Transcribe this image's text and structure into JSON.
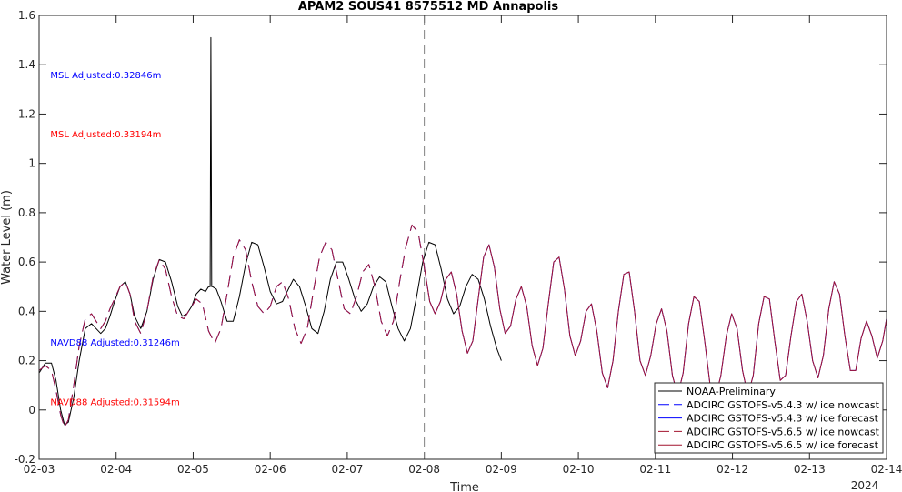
{
  "chart_data": {
    "type": "line",
    "title": "APAM2 SOUS41 8575512 MD Annapolis",
    "xlabel": "Time",
    "ylabel": "Water Level (m)",
    "xlim": [
      0,
      11
    ],
    "ylim": [
      -0.2,
      1.6
    ],
    "x_ticks": [
      {
        "x": 0,
        "label": "02-03"
      },
      {
        "x": 1,
        "label": "02-04"
      },
      {
        "x": 2,
        "label": "02-05"
      },
      {
        "x": 3,
        "label": "02-06"
      },
      {
        "x": 4,
        "label": "02-07"
      },
      {
        "x": 5,
        "label": "02-08"
      },
      {
        "x": 6,
        "label": "02-09"
      },
      {
        "x": 7,
        "label": "02-10"
      },
      {
        "x": 8,
        "label": "02-11"
      },
      {
        "x": 9,
        "label": "02-12"
      },
      {
        "x": 10,
        "label": "02-13"
      },
      {
        "x": 11,
        "label": "02-14"
      }
    ],
    "x_sub_label": "2024",
    "y_ticks": [
      -0.2,
      0,
      0.2,
      0.4,
      0.6,
      0.8,
      1,
      1.2,
      1.4,
      1.6
    ],
    "y_tick_labels": [
      "-0.2",
      "0",
      "0.2",
      "0.4",
      "0.6",
      "0.8",
      "1",
      "1.2",
      "1.4",
      "1.6"
    ],
    "forecast_divider_x": 5,
    "annotations": [
      {
        "text": "MSL Adjusted:0.32846m",
        "x": 0.3,
        "y": 1.36,
        "color": "#0000ff"
      },
      {
        "text": "MSL Adjusted:0.33194m",
        "x": 0.3,
        "y": 1.12,
        "color": "#ff0000"
      },
      {
        "text": "NAVD88 Adjusted:0.31246m",
        "x": 0.3,
        "y": 0.275,
        "color": "#0000ff"
      },
      {
        "text": "NAVD88 Adjusted:0.31594m",
        "x": 0.3,
        "y": 0.035,
        "color": "#ff0000"
      }
    ],
    "legend_position": "bottom-right",
    "series": [
      {
        "name": "NOAA-Preliminary",
        "color": "#000000",
        "dash": "solid",
        "x": [
          0,
          0.08,
          0.16,
          0.22,
          0.28,
          0.33,
          0.38,
          0.45,
          0.52,
          0.6,
          0.68,
          0.74,
          0.8,
          0.86,
          0.92,
          0.98,
          1.05,
          1.12,
          1.18,
          1.24,
          1.32,
          1.4,
          1.48,
          1.56,
          1.64,
          1.72,
          1.8,
          1.86,
          1.92,
          1.98,
          2.04,
          2.1,
          2.16,
          2.2,
          2.22,
          2.23,
          2.24,
          2.25,
          2.3,
          2.36,
          2.44,
          2.52,
          2.6,
          2.68,
          2.76,
          2.84,
          2.92,
          3.0,
          3.08,
          3.16,
          3.22,
          3.3,
          3.38,
          3.46,
          3.54,
          3.62,
          3.7,
          3.78,
          3.86,
          3.94,
          4.02,
          4.1,
          4.18,
          4.26,
          4.34,
          4.42,
          4.5,
          4.58,
          4.66,
          4.74,
          4.82,
          4.9,
          4.98,
          5.06,
          5.14,
          5.22,
          5.3,
          5.38,
          5.46,
          5.54,
          5.62,
          5.7,
          5.78,
          5.86,
          5.94,
          6.0
        ],
        "y": [
          0.15,
          0.19,
          0.19,
          0.12,
          0.0,
          -0.06,
          -0.05,
          0.05,
          0.2,
          0.33,
          0.35,
          0.33,
          0.31,
          0.33,
          0.38,
          0.44,
          0.5,
          0.52,
          0.47,
          0.38,
          0.33,
          0.4,
          0.53,
          0.61,
          0.6,
          0.52,
          0.42,
          0.38,
          0.39,
          0.42,
          0.47,
          0.49,
          0.48,
          0.5,
          0.5,
          1.51,
          0.5,
          0.5,
          0.49,
          0.44,
          0.36,
          0.36,
          0.46,
          0.59,
          0.68,
          0.67,
          0.58,
          0.48,
          0.43,
          0.44,
          0.48,
          0.53,
          0.5,
          0.42,
          0.33,
          0.31,
          0.4,
          0.53,
          0.6,
          0.6,
          0.53,
          0.45,
          0.4,
          0.43,
          0.5,
          0.54,
          0.52,
          0.42,
          0.33,
          0.28,
          0.33,
          0.46,
          0.6,
          0.68,
          0.67,
          0.57,
          0.45,
          0.39,
          0.42,
          0.5,
          0.55,
          0.53,
          0.45,
          0.34,
          0.25,
          0.2
        ]
      },
      {
        "name": "ADCIRC GSTOFS-v5.4.3 w/ ice nowcast",
        "color": "#0000ff",
        "dash": "dashed",
        "x": [
          0,
          0.08,
          0.16,
          0.22,
          0.28,
          0.33,
          0.38,
          0.45,
          0.52,
          0.6,
          0.68,
          0.74,
          0.8,
          0.86,
          0.92,
          0.98,
          1.05,
          1.12,
          1.18,
          1.24,
          1.32,
          1.4,
          1.48,
          1.56,
          1.64,
          1.72,
          1.8,
          1.88,
          1.96,
          2.04,
          2.12,
          2.2,
          2.28,
          2.36,
          2.44,
          2.52,
          2.6,
          2.68,
          2.76,
          2.84,
          2.92,
          3.0,
          3.08,
          3.16,
          3.24,
          3.32,
          3.4,
          3.48,
          3.56,
          3.64,
          3.72,
          3.8,
          3.88,
          3.96,
          4.04,
          4.12,
          4.2,
          4.28,
          4.36,
          4.44,
          4.52,
          4.6,
          4.68,
          4.76,
          4.84,
          4.92,
          5.0
        ],
        "y": [
          0.16,
          0.18,
          0.16,
          0.08,
          -0.02,
          -0.07,
          -0.04,
          0.1,
          0.26,
          0.37,
          0.39,
          0.36,
          0.33,
          0.36,
          0.41,
          0.45,
          0.5,
          0.52,
          0.47,
          0.36,
          0.31,
          0.4,
          0.54,
          0.61,
          0.57,
          0.46,
          0.38,
          0.37,
          0.41,
          0.45,
          0.43,
          0.32,
          0.27,
          0.33,
          0.47,
          0.62,
          0.69,
          0.65,
          0.52,
          0.42,
          0.39,
          0.42,
          0.5,
          0.52,
          0.45,
          0.33,
          0.27,
          0.33,
          0.48,
          0.62,
          0.68,
          0.65,
          0.53,
          0.41,
          0.39,
          0.46,
          0.56,
          0.59,
          0.5,
          0.36,
          0.3,
          0.36,
          0.52,
          0.66,
          0.75,
          0.72,
          0.58
        ]
      },
      {
        "name": "ADCIRC GSTOFS-v5.4.3 w/ ice forecast",
        "color": "#0000ff",
        "dash": "solid",
        "x": [
          5.0,
          5.07,
          5.14,
          5.21,
          5.28,
          5.35,
          5.42,
          5.49,
          5.56,
          5.63,
          5.7,
          5.77,
          5.84,
          5.91,
          5.98,
          6.05,
          6.12,
          6.19,
          6.26,
          6.33,
          6.4,
          6.47,
          6.54,
          6.61,
          6.68,
          6.75,
          6.82,
          6.89,
          6.96,
          7.03,
          7.1,
          7.17,
          7.24,
          7.31,
          7.38,
          7.45,
          7.52,
          7.59,
          7.66,
          7.73,
          7.8,
          7.87,
          7.94,
          8.01,
          8.08,
          8.15,
          8.22,
          8.29,
          8.36,
          8.43,
          8.5,
          8.57,
          8.64,
          8.71,
          8.78,
          8.85,
          8.92,
          8.99,
          9.06,
          9.13,
          9.2,
          9.27,
          9.34,
          9.41,
          9.48,
          9.55,
          9.62,
          9.69,
          9.76,
          9.83,
          9.9,
          9.97,
          10.04,
          10.11,
          10.18,
          10.25,
          10.32,
          10.39,
          10.46,
          10.53,
          10.6,
          10.67,
          10.74,
          10.81,
          10.88,
          10.95,
          11.0
        ],
        "y": [
          0.58,
          0.44,
          0.39,
          0.44,
          0.53,
          0.56,
          0.47,
          0.32,
          0.23,
          0.28,
          0.45,
          0.62,
          0.67,
          0.58,
          0.41,
          0.31,
          0.34,
          0.45,
          0.5,
          0.42,
          0.26,
          0.18,
          0.25,
          0.43,
          0.6,
          0.62,
          0.49,
          0.3,
          0.22,
          0.28,
          0.4,
          0.43,
          0.32,
          0.15,
          0.09,
          0.2,
          0.4,
          0.55,
          0.56,
          0.4,
          0.2,
          0.14,
          0.22,
          0.35,
          0.41,
          0.32,
          0.14,
          0.06,
          0.15,
          0.35,
          0.46,
          0.44,
          0.28,
          0.1,
          0.05,
          0.14,
          0.3,
          0.39,
          0.33,
          0.16,
          0.06,
          0.14,
          0.35,
          0.46,
          0.45,
          0.28,
          0.12,
          0.14,
          0.3,
          0.44,
          0.47,
          0.36,
          0.2,
          0.13,
          0.22,
          0.41,
          0.52,
          0.47,
          0.3,
          0.16,
          0.16,
          0.29,
          0.36,
          0.3,
          0.21,
          0.28,
          0.37
        ]
      },
      {
        "name": "ADCIRC GSTOFS-v5.6.5 w/ ice nowcast",
        "color": "#a2142f",
        "dash": "dashed",
        "x": [
          0,
          0.08,
          0.16,
          0.22,
          0.28,
          0.33,
          0.38,
          0.45,
          0.52,
          0.6,
          0.68,
          0.74,
          0.8,
          0.86,
          0.92,
          0.98,
          1.05,
          1.12,
          1.18,
          1.24,
          1.32,
          1.4,
          1.48,
          1.56,
          1.64,
          1.72,
          1.8,
          1.88,
          1.96,
          2.04,
          2.12,
          2.2,
          2.28,
          2.36,
          2.44,
          2.52,
          2.6,
          2.68,
          2.76,
          2.84,
          2.92,
          3.0,
          3.08,
          3.16,
          3.24,
          3.32,
          3.4,
          3.48,
          3.56,
          3.64,
          3.72,
          3.8,
          3.88,
          3.96,
          4.04,
          4.12,
          4.2,
          4.28,
          4.36,
          4.44,
          4.52,
          4.6,
          4.68,
          4.76,
          4.84,
          4.92,
          5.0
        ],
        "y": [
          0.16,
          0.18,
          0.16,
          0.08,
          -0.02,
          -0.07,
          -0.04,
          0.1,
          0.26,
          0.37,
          0.39,
          0.36,
          0.33,
          0.36,
          0.41,
          0.45,
          0.5,
          0.52,
          0.47,
          0.36,
          0.31,
          0.4,
          0.54,
          0.61,
          0.57,
          0.46,
          0.38,
          0.37,
          0.41,
          0.45,
          0.43,
          0.32,
          0.27,
          0.33,
          0.47,
          0.62,
          0.69,
          0.65,
          0.52,
          0.42,
          0.39,
          0.42,
          0.5,
          0.52,
          0.45,
          0.33,
          0.27,
          0.33,
          0.48,
          0.62,
          0.68,
          0.65,
          0.53,
          0.41,
          0.39,
          0.46,
          0.56,
          0.59,
          0.5,
          0.36,
          0.3,
          0.36,
          0.52,
          0.66,
          0.75,
          0.72,
          0.58
        ]
      },
      {
        "name": "ADCIRC GSTOFS-v5.6.5 w/ ice forecast",
        "color": "#a2142f",
        "dash": "solid",
        "x": [
          5.0,
          5.07,
          5.14,
          5.21,
          5.28,
          5.35,
          5.42,
          5.49,
          5.56,
          5.63,
          5.7,
          5.77,
          5.84,
          5.91,
          5.98,
          6.05,
          6.12,
          6.19,
          6.26,
          6.33,
          6.4,
          6.47,
          6.54,
          6.61,
          6.68,
          6.75,
          6.82,
          6.89,
          6.96,
          7.03,
          7.1,
          7.17,
          7.24,
          7.31,
          7.38,
          7.45,
          7.52,
          7.59,
          7.66,
          7.73,
          7.8,
          7.87,
          7.94,
          8.01,
          8.08,
          8.15,
          8.22,
          8.29,
          8.36,
          8.43,
          8.5,
          8.57,
          8.64,
          8.71,
          8.78,
          8.85,
          8.92,
          8.99,
          9.06,
          9.13,
          9.2,
          9.27,
          9.34,
          9.41,
          9.48,
          9.55,
          9.62,
          9.69,
          9.76,
          9.83,
          9.9,
          9.97,
          10.04,
          10.11,
          10.18,
          10.25,
          10.32,
          10.39,
          10.46,
          10.53,
          10.6,
          10.67,
          10.74,
          10.81,
          10.88,
          10.95,
          11.0
        ],
        "y": [
          0.58,
          0.44,
          0.39,
          0.44,
          0.53,
          0.56,
          0.47,
          0.32,
          0.23,
          0.28,
          0.45,
          0.62,
          0.67,
          0.58,
          0.41,
          0.31,
          0.34,
          0.45,
          0.5,
          0.42,
          0.26,
          0.18,
          0.25,
          0.43,
          0.6,
          0.62,
          0.49,
          0.3,
          0.22,
          0.28,
          0.4,
          0.43,
          0.32,
          0.15,
          0.09,
          0.2,
          0.4,
          0.55,
          0.56,
          0.4,
          0.2,
          0.14,
          0.22,
          0.35,
          0.41,
          0.32,
          0.14,
          0.06,
          0.15,
          0.35,
          0.46,
          0.44,
          0.28,
          0.1,
          0.05,
          0.14,
          0.3,
          0.39,
          0.33,
          0.16,
          0.06,
          0.14,
          0.35,
          0.46,
          0.45,
          0.28,
          0.12,
          0.14,
          0.3,
          0.44,
          0.47,
          0.36,
          0.2,
          0.13,
          0.22,
          0.41,
          0.52,
          0.47,
          0.3,
          0.16,
          0.16,
          0.29,
          0.36,
          0.3,
          0.21,
          0.28,
          0.37
        ]
      }
    ]
  }
}
